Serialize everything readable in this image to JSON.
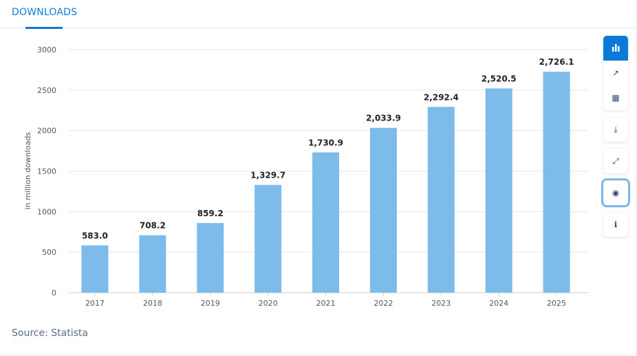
{
  "tab": {
    "label": "DOWNLOADS"
  },
  "source": "Source: Statista",
  "toolbar": [
    {
      "name": "bar-chart",
      "glyph": "▮"
    },
    {
      "name": "trend",
      "glyph": "↗"
    },
    {
      "name": "table",
      "glyph": "▦"
    },
    {
      "name": "download",
      "glyph": "⤓"
    },
    {
      "name": "fullscreen",
      "glyph": "⤢"
    },
    {
      "name": "hide",
      "glyph": "◉"
    },
    {
      "name": "info",
      "glyph": "ℹ"
    }
  ],
  "chart_data": {
    "type": "bar",
    "categories": [
      "2017",
      "2018",
      "2019",
      "2020",
      "2021",
      "2022",
      "2023",
      "2024",
      "2025"
    ],
    "values": [
      583.0,
      708.2,
      859.2,
      1329.7,
      1730.9,
      2033.9,
      2292.4,
      2520.5,
      2726.1
    ],
    "labels": [
      "583.0",
      "708.2",
      "859.2",
      "1,329.7",
      "1,730.9",
      "2,033.9",
      "2,292.4",
      "2,520.5",
      "2,726.1"
    ],
    "ylabel": "in million downloads",
    "ylim": [
      0,
      3000
    ],
    "yticks": [
      "0",
      "500",
      "1000",
      "1500",
      "2000",
      "2500",
      "3000"
    ],
    "grid": true,
    "color": "#7dbbea"
  }
}
